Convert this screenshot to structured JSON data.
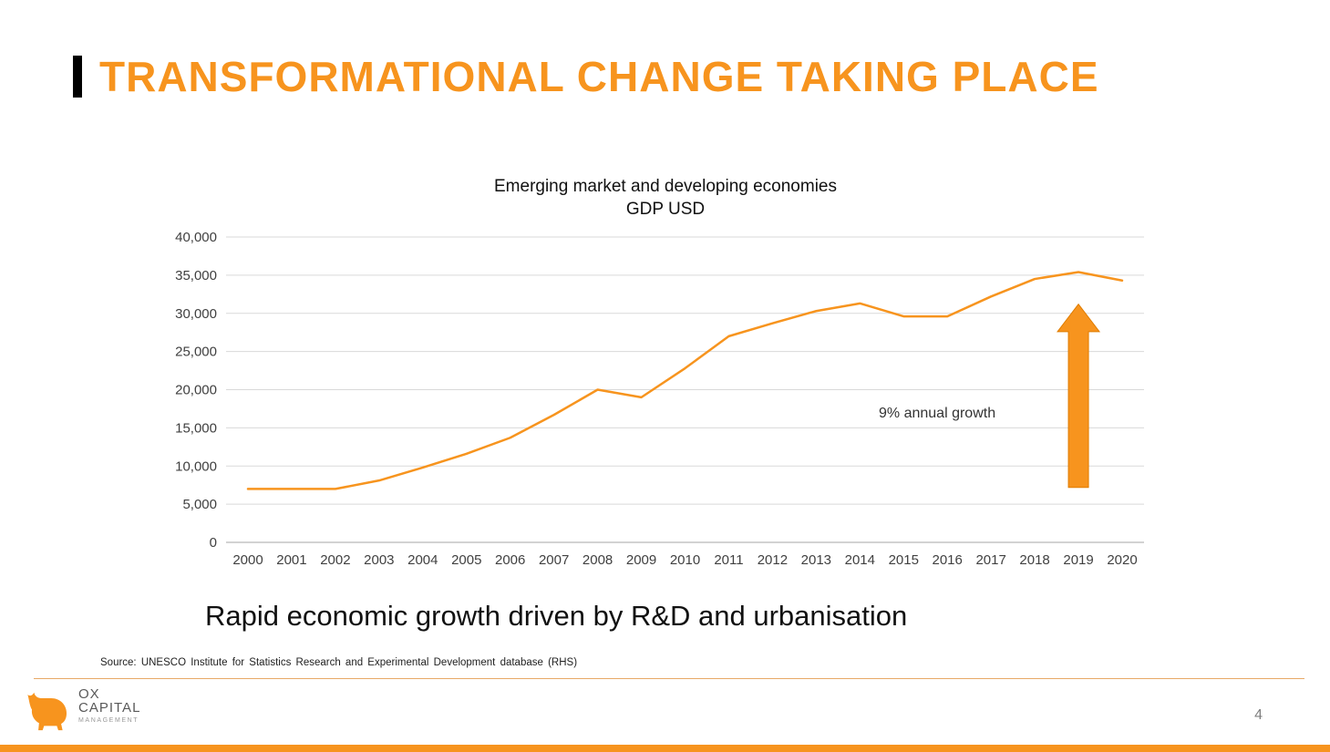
{
  "slide": {
    "title": "TRANSFORMATIONAL CHANGE TAKING PLACE",
    "subtitle": "Rapid economic growth driven by R&D and urbanisation",
    "source": "Source:  UNESCO Institute for Statistics Research and Experimental Development database (RHS)",
    "page_number": "4"
  },
  "logo": {
    "line1": "OX",
    "line2": "CAPITAL",
    "line3": "MANAGEMENT"
  },
  "chart_data": {
    "type": "line",
    "title": "Emerging market and developing economies",
    "subtitle": "GDP USD",
    "categories": [
      "2000",
      "2001",
      "2002",
      "2003",
      "2004",
      "2005",
      "2006",
      "2007",
      "2008",
      "2009",
      "2010",
      "2011",
      "2012",
      "2013",
      "2014",
      "2015",
      "2016",
      "2017",
      "2018",
      "2019",
      "2020"
    ],
    "values": [
      7000,
      7000,
      7000,
      8100,
      9800,
      11600,
      13700,
      16700,
      20000,
      19000,
      22800,
      27000,
      28700,
      30300,
      31300,
      29600,
      29600,
      32200,
      34500,
      35400,
      34300
    ],
    "ylim": [
      0,
      40000
    ],
    "ytick_interval": 5000,
    "ytick_labels": [
      "0",
      "5,000",
      "10,000",
      "15,000",
      "20,000",
      "25,000",
      "30,000",
      "35,000",
      "40,000"
    ],
    "annotation": "9% annual growth",
    "annotation_arrow": "up",
    "line_color": "#F7941E",
    "grid": true,
    "legend": "none"
  },
  "colors": {
    "accent": "#F7941E",
    "gridline": "#D9D9D9",
    "axis_line": "#A6A6A6",
    "axis_text": "#404040",
    "page_number": "#808080"
  }
}
